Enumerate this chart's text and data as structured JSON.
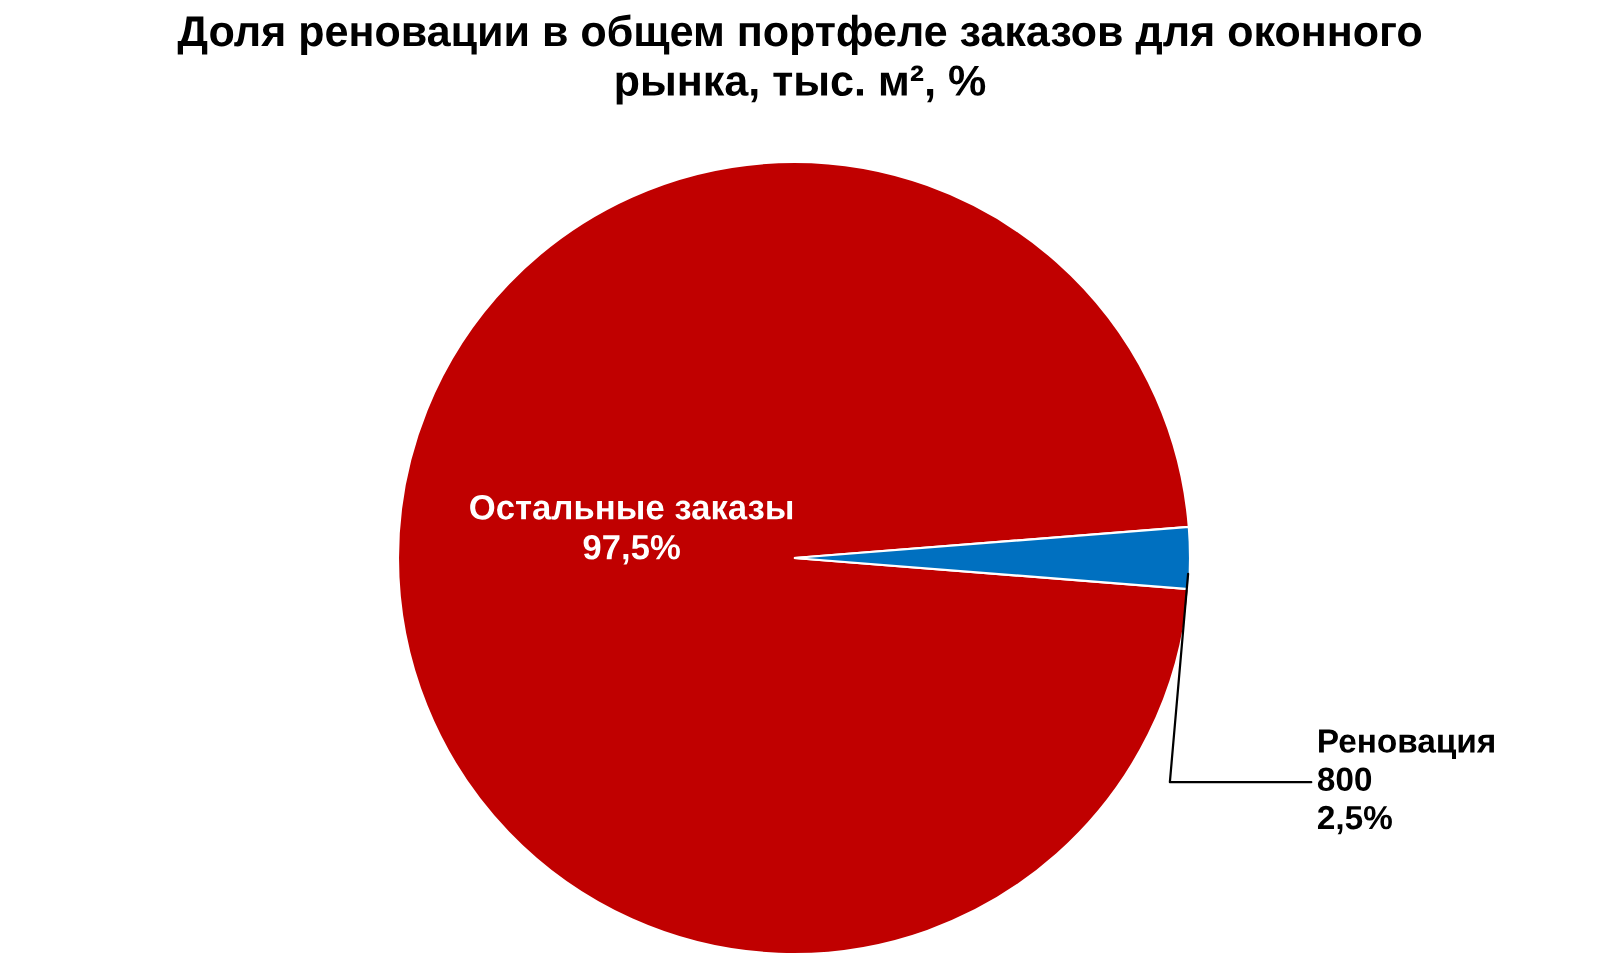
{
  "chart_data": {
    "type": "pie",
    "title": "Доля реновации в общем портфеле заказов для оконного\nрынка, тыс. м², %",
    "categories": [
      "Остальные заказы",
      "Реновация"
    ],
    "values": [
      97.5,
      2.5
    ],
    "value_labels": [
      "97,5%",
      "800\n2,5%"
    ],
    "colors": [
      "#c00000",
      "#0070c0"
    ],
    "legend": false
  }
}
